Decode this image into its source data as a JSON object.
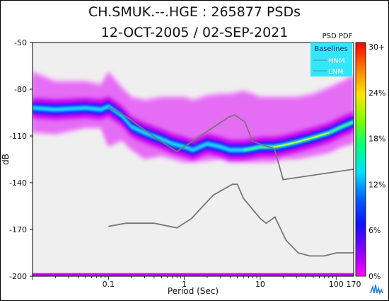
{
  "chart_data": {
    "type": "heatmap",
    "title": "CH.SMUK.--.HGE : 265877 PSDs",
    "subtitle": "12-OCT-2005 / 02-SEP-2021",
    "xlabel": "Period (Sec)",
    "ylabel": "dB",
    "x_scale": "log",
    "xlim": [
      0.01,
      170
    ],
    "ylim": [
      -200,
      -50
    ],
    "x_ticks": [
      {
        "value": 0.1,
        "label": "0.1"
      },
      {
        "value": 1,
        "label": "1"
      },
      {
        "value": 10,
        "label": "10"
      },
      {
        "value": 100,
        "label": "100"
      },
      {
        "value": 170,
        "label": "170"
      }
    ],
    "y_ticks": [
      -50,
      -80,
      -110,
      -140,
      -170,
      -200
    ],
    "colorbar": {
      "title": "PSD PDF",
      "labels": [
        "30+",
        "24%",
        "18%",
        "12%",
        "6%",
        "0%"
      ],
      "stops": [
        "#ff0000",
        "#ff7a00",
        "#ffe600",
        "#7cff00",
        "#00ff80",
        "#00e0ff",
        "#0060ff",
        "#1010ff",
        "#8a00ff",
        "#ff00ff"
      ]
    },
    "legend": {
      "title": "Baselines",
      "placement": "top-right",
      "entries": [
        {
          "label": "HNM",
          "color": "#808080"
        },
        {
          "label": "LNM",
          "color": "#808080"
        }
      ]
    },
    "pdf_band": {
      "mode_x": [
        0.01,
        0.02,
        0.05,
        0.08,
        0.1,
        0.15,
        0.2,
        0.3,
        0.5,
        0.7,
        1,
        1.3,
        2,
        3,
        4,
        5,
        6,
        8,
        10,
        15,
        20,
        30,
        50,
        80,
        120,
        170
      ],
      "mode_y": [
        -92,
        -93,
        -92,
        -93,
        -91,
        -97,
        -104,
        -108,
        -112,
        -115,
        -117,
        -119,
        -115,
        -117,
        -119,
        -119,
        -119,
        -118,
        -117,
        -117,
        -116,
        -114,
        -111,
        -108,
        -104,
        -101
      ],
      "halo_upper": [
        -70,
        -76,
        -76,
        -78,
        -70,
        -80,
        -86,
        -88,
        -86,
        -86,
        -86,
        -88,
        -85,
        -84,
        -84,
        -83,
        -82,
        -84,
        -86,
        -86,
        -86,
        -86,
        -84,
        -80,
        -76,
        -72
      ],
      "halo_lower": [
        -107,
        -108,
        -104,
        -104,
        -116,
        -112,
        -118,
        -124,
        -122,
        -124,
        -126,
        -126,
        -125,
        -124,
        -126,
        -126,
        -126,
        -126,
        -126,
        -126,
        -124,
        -124,
        -122,
        -120,
        -116,
        -114
      ]
    },
    "series": [
      {
        "name": "HNM",
        "x": [
          0.1,
          0.17,
          0.4,
          0.8,
          3.8,
          4.6,
          6.3,
          7.9,
          15.4,
          20,
          354.8
        ],
        "y": [
          -91.5,
          -97.5,
          -110.5,
          -120,
          -98,
          -96.5,
          -101,
          -113.5,
          -118.3,
          -138,
          -129
        ]
      },
      {
        "name": "LNM",
        "x": [
          0.1,
          0.17,
          0.4,
          0.8,
          1.24,
          2.4,
          4.3,
          5,
          6,
          10,
          12,
          15.6,
          21.9,
          31.6,
          45,
          70,
          101,
          154,
          328
        ],
        "y": [
          -168,
          -166,
          -166,
          -169,
          -163,
          -148,
          -141,
          -141,
          -150,
          -163,
          -166,
          -162,
          -177,
          -185,
          -187,
          -187,
          -185,
          -185,
          -185
        ]
      }
    ],
    "floor_band": {
      "y_from": -200,
      "y_to": -198,
      "color": "#cc00ff"
    }
  }
}
